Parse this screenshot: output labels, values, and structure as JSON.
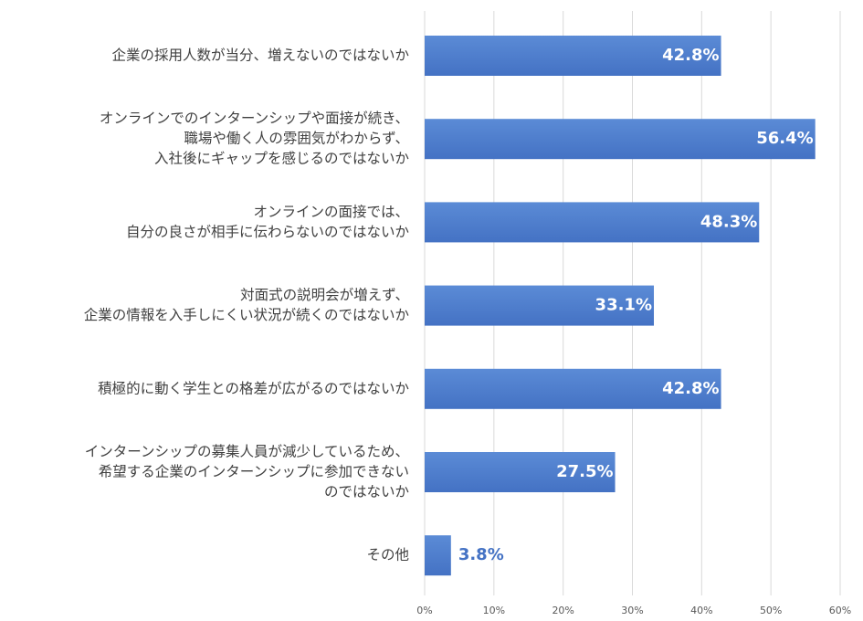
{
  "chart_data": {
    "type": "bar",
    "orientation": "horizontal",
    "categories": [
      [
        "企業の採用人数が当分、増えないのではないか"
      ],
      [
        "オンラインでのインターンシップや面接が続き、",
        "職場や働く人の雰囲気がわからず、",
        "入社後にギャップを感じるのではないか"
      ],
      [
        "オンラインの面接では、",
        "自分の良さが相手に伝わらないのではないか"
      ],
      [
        "対面式の説明会が増えず、",
        "企業の情報を入手しにくい状況が続くのではないか"
      ],
      [
        "積極的に動く学生との格差が広がるのではないか"
      ],
      [
        "インターンシップの募集人員が減少しているため、",
        "希望する企業のインターンシップに参加できない",
        "のではないか"
      ],
      [
        "その他"
      ]
    ],
    "values": [
      42.8,
      56.4,
      48.3,
      33.1,
      42.8,
      27.5,
      3.8
    ],
    "data_labels": [
      "42.8%",
      "56.4%",
      "48.3%",
      "33.1%",
      "42.8%",
      "27.5%",
      "3.8%"
    ],
    "xlim": [
      0,
      60
    ],
    "x_ticks": [
      "0%",
      "10%",
      "20%",
      "30%",
      "40%",
      "50%",
      "60%"
    ],
    "grid": true,
    "bar_color": "#4472c4",
    "bar_color_light": "#5b8bd6",
    "grid_color": "#d9d9d9"
  }
}
